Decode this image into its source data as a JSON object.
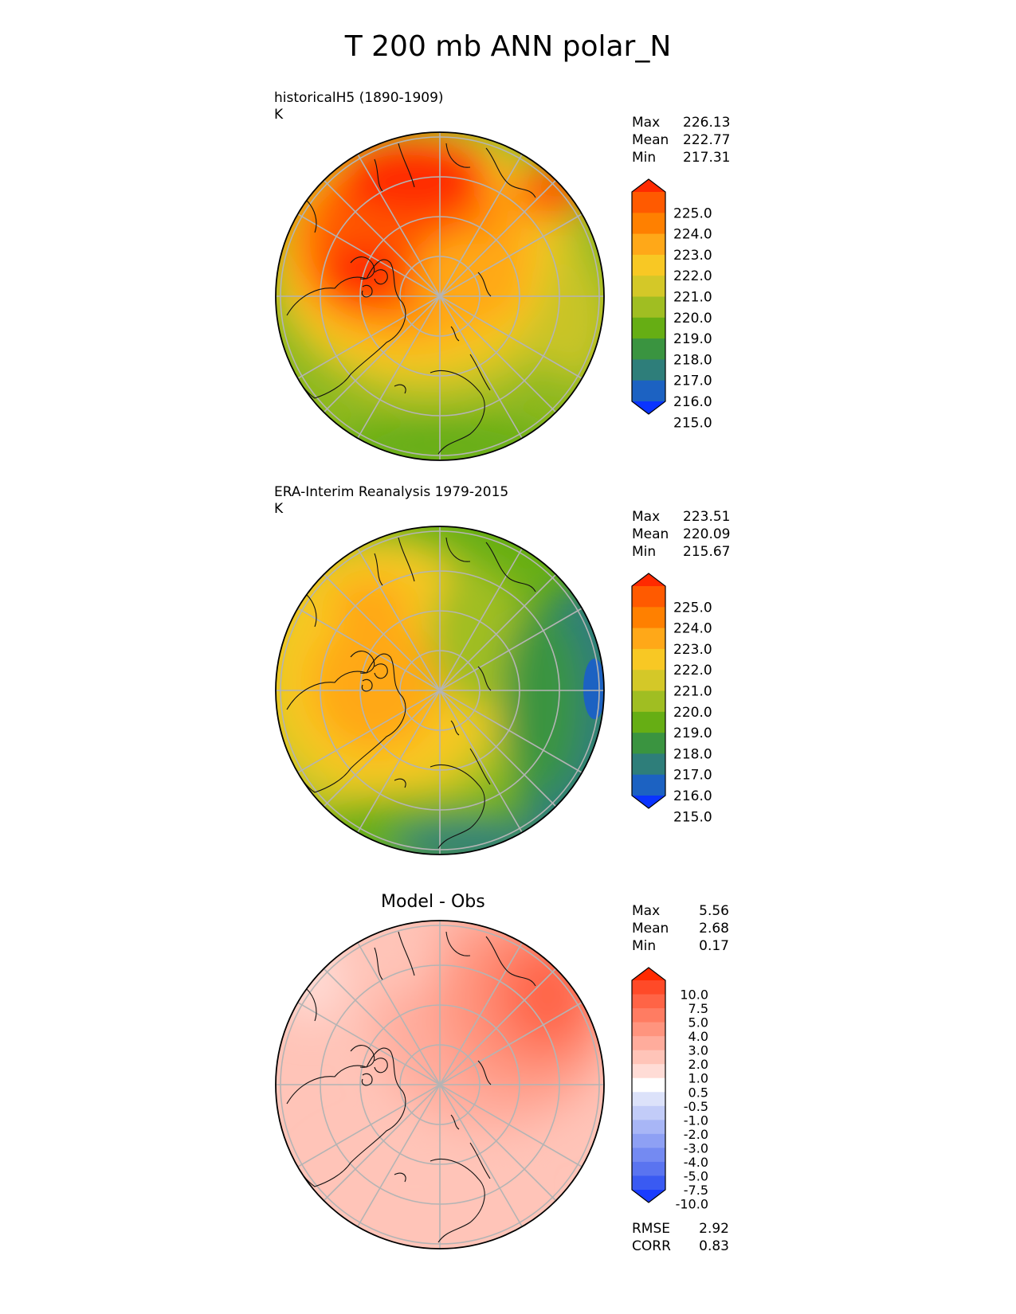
{
  "title": "T 200 mb ANN polar_N",
  "panels": [
    {
      "label": "historicalH5 (1890-1909)",
      "units": "K",
      "stats": [
        {
          "name": "Max",
          "value": "226.13"
        },
        {
          "name": "Mean",
          "value": "222.77"
        },
        {
          "name": "Min",
          "value": "217.31"
        }
      ],
      "colorbar": {
        "ticks": [
          "225.0",
          "224.0",
          "223.0",
          "222.0",
          "221.0",
          "220.0",
          "219.0",
          "218.0",
          "217.0",
          "216.0",
          "215.0"
        ],
        "colors": [
          "#ff2a00",
          "#ff5a00",
          "#ff8000",
          "#ffa818",
          "#f8c824",
          "#d4c828",
          "#a0be22",
          "#66ae14",
          "#3a9440",
          "#2e7e7a",
          "#1c62c2",
          "#0a34ff"
        ]
      }
    },
    {
      "label": "ERA-Interim Reanalysis 1979-2015",
      "units": "K",
      "stats": [
        {
          "name": "Max",
          "value": "223.51"
        },
        {
          "name": "Mean",
          "value": "220.09"
        },
        {
          "name": "Min",
          "value": "215.67"
        }
      ],
      "colorbar": {
        "ticks": [
          "225.0",
          "224.0",
          "223.0",
          "222.0",
          "221.0",
          "220.0",
          "219.0",
          "218.0",
          "217.0",
          "216.0",
          "215.0"
        ],
        "colors": [
          "#ff2a00",
          "#ff5a00",
          "#ff8000",
          "#ffa818",
          "#f8c824",
          "#d4c828",
          "#a0be22",
          "#66ae14",
          "#3a9440",
          "#2e7e7a",
          "#1c62c2",
          "#0a34ff"
        ]
      }
    },
    {
      "label": "Model - Obs",
      "stats": [
        {
          "name": "Max",
          "value": "5.56"
        },
        {
          "name": "Mean",
          "value": "2.68"
        },
        {
          "name": "Min",
          "value": "0.17"
        }
      ],
      "metrics": [
        {
          "name": "RMSE",
          "value": "2.92"
        },
        {
          "name": "CORR",
          "value": "0.83"
        }
      ],
      "colorbar": {
        "ticks": [
          "10.0",
          "7.5",
          "5.0",
          "4.0",
          "3.0",
          "2.0",
          "1.0",
          "0.5",
          "-0.5",
          "-1.0",
          "-2.0",
          "-3.0",
          "-4.0",
          "-5.0",
          "-7.5",
          "-10.0"
        ],
        "colors": [
          "#ff2a00",
          "#ff4a28",
          "#ff6446",
          "#ff7c62",
          "#ff947e",
          "#ffac9c",
          "#ffc4b8",
          "#ffdcd6",
          "#ffffff",
          "#dce2fa",
          "#c2ccf8",
          "#a8b6f6",
          "#8ea0f4",
          "#748af2",
          "#5a74f0",
          "#3a5af2",
          "#1a3cff"
        ]
      }
    }
  ],
  "chart_data": [
    {
      "type": "heatmap",
      "projection": "north-polar-stereographic",
      "title": "historicalH5 (1890-1909)",
      "units": "K",
      "max": 226.13,
      "mean": 222.77,
      "min": 217.31,
      "levels": [
        215.0,
        216.0,
        217.0,
        218.0,
        219.0,
        220.0,
        221.0,
        222.0,
        223.0,
        224.0,
        225.0
      ],
      "colorbar_extend": "both"
    },
    {
      "type": "heatmap",
      "projection": "north-polar-stereographic",
      "title": "ERA-Interim Reanalysis 1979-2015",
      "units": "K",
      "max": 223.51,
      "mean": 220.09,
      "min": 215.67,
      "levels": [
        215.0,
        216.0,
        217.0,
        218.0,
        219.0,
        220.0,
        221.0,
        222.0,
        223.0,
        224.0,
        225.0
      ],
      "colorbar_extend": "both"
    },
    {
      "type": "heatmap",
      "projection": "north-polar-stereographic",
      "title": "Model - Obs",
      "max": 5.56,
      "mean": 2.68,
      "min": 0.17,
      "rmse": 2.92,
      "corr": 0.83,
      "levels": [
        -10.0,
        -7.5,
        -5.0,
        -4.0,
        -3.0,
        -2.0,
        -1.0,
        -0.5,
        0.5,
        1.0,
        2.0,
        3.0,
        4.0,
        5.0,
        7.5,
        10.0
      ],
      "colorbar_extend": "both"
    }
  ]
}
